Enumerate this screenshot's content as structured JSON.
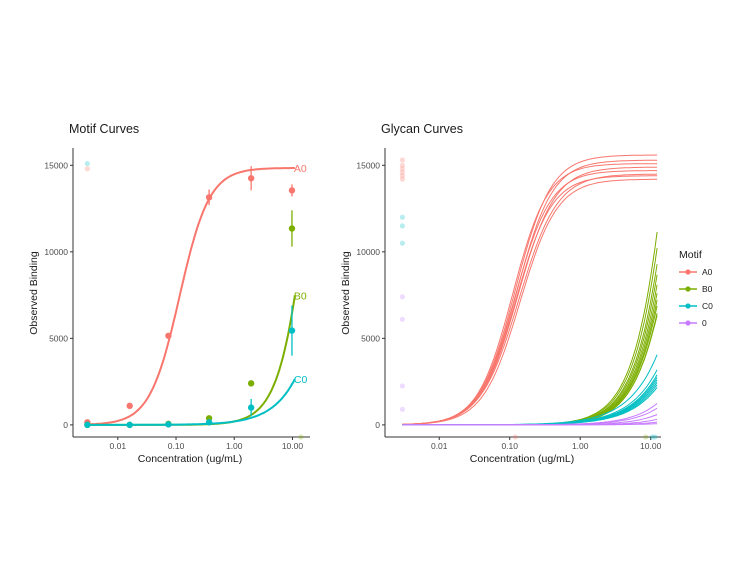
{
  "colors": {
    "A0": "#F8766D",
    "B0": "#7CAE00",
    "C0": "#00BFC4",
    "0": "#C77CFF",
    "axis": "#333333"
  },
  "legend": {
    "title": "Motif",
    "entries": [
      {
        "label": "A0",
        "key": "A0"
      },
      {
        "label": "B0",
        "key": "B0"
      },
      {
        "label": "C0",
        "key": "C0"
      },
      {
        "label": "0",
        "key": "0"
      }
    ]
  },
  "chart_data": [
    {
      "type": "scatter",
      "title": "Motif Curves",
      "xlabel": "Concentration (ug/mL)",
      "ylabel": "Observed Binding",
      "x_scale": "log10",
      "xlim": [
        0.0017,
        20
      ],
      "ylim": [
        -700,
        16000
      ],
      "x_ticks": [
        0.01,
        0.1,
        1,
        10
      ],
      "x_tick_labels": [
        "0.01",
        "0.10",
        "1.00",
        "10.00"
      ],
      "y_ticks": [
        0,
        5000,
        10000,
        15000
      ],
      "y_tick_labels": [
        "0",
        "5000",
        "10000",
        "15000"
      ],
      "grid": false,
      "series": [
        {
          "name": "A0",
          "key": "A0",
          "curve": {
            "top": 14850,
            "ec50": 0.115,
            "hill": 1.7,
            "x_max": 11
          },
          "points": [
            {
              "x": 0.003,
              "y": 150,
              "err": 0
            },
            {
              "x": 0.016,
              "y": 1100,
              "err": 0
            },
            {
              "x": 0.074,
              "y": 5150,
              "err": 0
            },
            {
              "x": 0.37,
              "y": 13150,
              "err": 450
            },
            {
              "x": 1.95,
              "y": 14250,
              "err": 700
            },
            {
              "x": 9.8,
              "y": 13550,
              "err": 350
            }
          ]
        },
        {
          "name": "B0",
          "key": "B0",
          "curve": {
            "top": 39000,
            "ec50": 27,
            "hill": 1.6,
            "x_max": 11
          },
          "points": [
            {
              "x": 0.003,
              "y": 0,
              "err": 0
            },
            {
              "x": 0.016,
              "y": 0,
              "err": 0
            },
            {
              "x": 0.074,
              "y": 60,
              "err": 0
            },
            {
              "x": 0.37,
              "y": 380,
              "err": 0
            },
            {
              "x": 1.95,
              "y": 2400,
              "err": 0
            },
            {
              "x": 9.8,
              "y": 11350,
              "err": 1050
            }
          ]
        },
        {
          "name": "C0",
          "key": "C0",
          "curve": {
            "top": 85000,
            "ec50": 250,
            "hill": 1.1,
            "x_max": 11
          },
          "points": [
            {
              "x": 0.003,
              "y": 0,
              "err": 0
            },
            {
              "x": 0.016,
              "y": 0,
              "err": 0
            },
            {
              "x": 0.074,
              "y": 30,
              "err": 0
            },
            {
              "x": 0.37,
              "y": 150,
              "err": 0
            },
            {
              "x": 1.95,
              "y": 1000,
              "err": 500
            },
            {
              "x": 9.8,
              "y": 5450,
              "err": 1450
            }
          ]
        }
      ],
      "faint_points": [
        {
          "x": 0.003,
          "y": 15100,
          "key": "C0"
        },
        {
          "x": 0.003,
          "y": 14800,
          "key": "A0"
        },
        {
          "x": 14,
          "y": -700,
          "key": "B0"
        }
      ]
    },
    {
      "type": "line",
      "title": "Glycan Curves",
      "xlabel": "Concentration (ug/mL)",
      "ylabel": "Observed Binding",
      "x_scale": "log10",
      "xlim": [
        0.0017,
        14
      ],
      "ylim": [
        -700,
        16000
      ],
      "x_ticks": [
        0.01,
        0.1,
        1,
        10
      ],
      "x_tick_labels": [
        "0.01",
        "0.10",
        "1.00",
        "10.00"
      ],
      "y_ticks": [
        0,
        5000,
        10000,
        15000
      ],
      "y_tick_labels": [
        "0",
        "5000",
        "10000",
        "15000"
      ],
      "grid": false,
      "curves": [
        {
          "key": "A0",
          "top": 15600,
          "ec50": 0.12,
          "hill": 1.7
        },
        {
          "key": "A0",
          "top": 15300,
          "ec50": 0.125,
          "hill": 1.7
        },
        {
          "key": "A0",
          "top": 15100,
          "ec50": 0.11,
          "hill": 1.75
        },
        {
          "key": "A0",
          "top": 14900,
          "ec50": 0.13,
          "hill": 1.65
        },
        {
          "key": "A0",
          "top": 14700,
          "ec50": 0.118,
          "hill": 1.7
        },
        {
          "key": "A0",
          "top": 14500,
          "ec50": 0.135,
          "hill": 1.6
        },
        {
          "key": "A0",
          "top": 14400,
          "ec50": 0.122,
          "hill": 1.7
        },
        {
          "key": "A0",
          "top": 14200,
          "ec50": 0.14,
          "hill": 1.65
        },
        {
          "key": "B0",
          "top": 60000,
          "ec50": 33,
          "hill": 1.5
        },
        {
          "key": "B0",
          "top": 55000,
          "ec50": 33,
          "hill": 1.5
        },
        {
          "key": "B0",
          "top": 50000,
          "ec50": 33,
          "hill": 1.5
        },
        {
          "key": "B0",
          "top": 45000,
          "ec50": 32,
          "hill": 1.5
        },
        {
          "key": "B0",
          "top": 42000,
          "ec50": 32,
          "hill": 1.5
        },
        {
          "key": "B0",
          "top": 38000,
          "ec50": 31,
          "hill": 1.5
        },
        {
          "key": "B0",
          "top": 36000,
          "ec50": 31,
          "hill": 1.5
        },
        {
          "key": "B0",
          "top": 33000,
          "ec50": 30,
          "hill": 1.5
        },
        {
          "key": "B0",
          "top": 31000,
          "ec50": 30,
          "hill": 1.5
        },
        {
          "key": "B0",
          "top": 28000,
          "ec50": 28,
          "hill": 1.5
        },
        {
          "key": "C0",
          "top": 140000,
          "ec50": 300,
          "hill": 1.1
        },
        {
          "key": "C0",
          "top": 110000,
          "ec50": 300,
          "hill": 1.1
        },
        {
          "key": "C0",
          "top": 100000,
          "ec50": 300,
          "hill": 1.1
        },
        {
          "key": "C0",
          "top": 95000,
          "ec50": 300,
          "hill": 1.1
        },
        {
          "key": "C0",
          "top": 90000,
          "ec50": 300,
          "hill": 1.1
        },
        {
          "key": "C0",
          "top": 85000,
          "ec50": 300,
          "hill": 1.1
        },
        {
          "key": "C0",
          "top": 80000,
          "ec50": 300,
          "hill": 1.1
        },
        {
          "key": "C0",
          "top": 75000,
          "ec50": 300,
          "hill": 1.1
        },
        {
          "key": "0",
          "top": 70000,
          "ec50": 350,
          "hill": 1.2
        },
        {
          "key": "0",
          "top": 60000,
          "ec50": 380,
          "hill": 1.2
        },
        {
          "key": "0",
          "top": 50000,
          "ec50": 420,
          "hill": 1.25
        },
        {
          "key": "0",
          "top": 40000,
          "ec50": 500,
          "hill": 1.3
        },
        {
          "key": "0",
          "top": 25000,
          "ec50": 600,
          "hill": 1.3
        },
        {
          "key": "0",
          "top": 12000,
          "ec50": 900,
          "hill": 1.2
        }
      ],
      "faint_points": [
        {
          "x": 0.003,
          "y": 15300,
          "key": "A0"
        },
        {
          "x": 0.003,
          "y": 15000,
          "key": "A0"
        },
        {
          "x": 0.003,
          "y": 14800,
          "key": "A0"
        },
        {
          "x": 0.003,
          "y": 14600,
          "key": "A0"
        },
        {
          "x": 0.003,
          "y": 14400,
          "key": "A0"
        },
        {
          "x": 0.003,
          "y": 14200,
          "key": "A0"
        },
        {
          "x": 0.003,
          "y": 12000,
          "key": "C0"
        },
        {
          "x": 0.003,
          "y": 11500,
          "key": "C0"
        },
        {
          "x": 0.003,
          "y": 10500,
          "key": "C0"
        },
        {
          "x": 0.003,
          "y": 7400,
          "key": "0"
        },
        {
          "x": 0.003,
          "y": 6100,
          "key": "0"
        },
        {
          "x": 0.003,
          "y": 2250,
          "key": "0"
        },
        {
          "x": 0.003,
          "y": 900,
          "key": "0"
        },
        {
          "x": 0.12,
          "y": -700,
          "key": "A0"
        },
        {
          "x": 8.5,
          "y": -700,
          "key": "B0"
        },
        {
          "x": 10.5,
          "y": -700,
          "key": "C0"
        },
        {
          "x": 11.5,
          "y": -700,
          "key": "C0"
        }
      ]
    }
  ]
}
